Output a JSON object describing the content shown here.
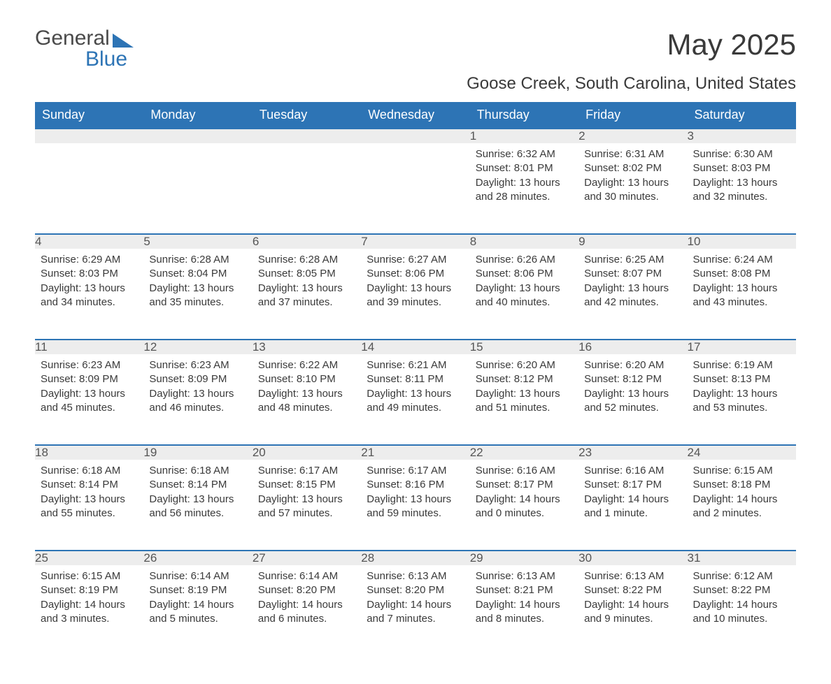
{
  "brand": {
    "word1": "General",
    "word2": "Blue"
  },
  "title": {
    "month": "May 2025",
    "location": "Goose Creek, South Carolina, United States"
  },
  "colors": {
    "header_bg": "#2d74b5",
    "header_text": "#ffffff",
    "daynum_bg": "#ededed",
    "daynum_border": "#2d74b5",
    "body_text": "#3a3a3a"
  },
  "weekdays": [
    "Sunday",
    "Monday",
    "Tuesday",
    "Wednesday",
    "Thursday",
    "Friday",
    "Saturday"
  ],
  "leading_blanks": 4,
  "days": [
    {
      "n": "1",
      "sunrise": "Sunrise: 6:32 AM",
      "sunset": "Sunset: 8:01 PM",
      "daylight": "Daylight: 13 hours and 28 minutes."
    },
    {
      "n": "2",
      "sunrise": "Sunrise: 6:31 AM",
      "sunset": "Sunset: 8:02 PM",
      "daylight": "Daylight: 13 hours and 30 minutes."
    },
    {
      "n": "3",
      "sunrise": "Sunrise: 6:30 AM",
      "sunset": "Sunset: 8:03 PM",
      "daylight": "Daylight: 13 hours and 32 minutes."
    },
    {
      "n": "4",
      "sunrise": "Sunrise: 6:29 AM",
      "sunset": "Sunset: 8:03 PM",
      "daylight": "Daylight: 13 hours and 34 minutes."
    },
    {
      "n": "5",
      "sunrise": "Sunrise: 6:28 AM",
      "sunset": "Sunset: 8:04 PM",
      "daylight": "Daylight: 13 hours and 35 minutes."
    },
    {
      "n": "6",
      "sunrise": "Sunrise: 6:28 AM",
      "sunset": "Sunset: 8:05 PM",
      "daylight": "Daylight: 13 hours and 37 minutes."
    },
    {
      "n": "7",
      "sunrise": "Sunrise: 6:27 AM",
      "sunset": "Sunset: 8:06 PM",
      "daylight": "Daylight: 13 hours and 39 minutes."
    },
    {
      "n": "8",
      "sunrise": "Sunrise: 6:26 AM",
      "sunset": "Sunset: 8:06 PM",
      "daylight": "Daylight: 13 hours and 40 minutes."
    },
    {
      "n": "9",
      "sunrise": "Sunrise: 6:25 AM",
      "sunset": "Sunset: 8:07 PM",
      "daylight": "Daylight: 13 hours and 42 minutes."
    },
    {
      "n": "10",
      "sunrise": "Sunrise: 6:24 AM",
      "sunset": "Sunset: 8:08 PM",
      "daylight": "Daylight: 13 hours and 43 minutes."
    },
    {
      "n": "11",
      "sunrise": "Sunrise: 6:23 AM",
      "sunset": "Sunset: 8:09 PM",
      "daylight": "Daylight: 13 hours and 45 minutes."
    },
    {
      "n": "12",
      "sunrise": "Sunrise: 6:23 AM",
      "sunset": "Sunset: 8:09 PM",
      "daylight": "Daylight: 13 hours and 46 minutes."
    },
    {
      "n": "13",
      "sunrise": "Sunrise: 6:22 AM",
      "sunset": "Sunset: 8:10 PM",
      "daylight": "Daylight: 13 hours and 48 minutes."
    },
    {
      "n": "14",
      "sunrise": "Sunrise: 6:21 AM",
      "sunset": "Sunset: 8:11 PM",
      "daylight": "Daylight: 13 hours and 49 minutes."
    },
    {
      "n": "15",
      "sunrise": "Sunrise: 6:20 AM",
      "sunset": "Sunset: 8:12 PM",
      "daylight": "Daylight: 13 hours and 51 minutes."
    },
    {
      "n": "16",
      "sunrise": "Sunrise: 6:20 AM",
      "sunset": "Sunset: 8:12 PM",
      "daylight": "Daylight: 13 hours and 52 minutes."
    },
    {
      "n": "17",
      "sunrise": "Sunrise: 6:19 AM",
      "sunset": "Sunset: 8:13 PM",
      "daylight": "Daylight: 13 hours and 53 minutes."
    },
    {
      "n": "18",
      "sunrise": "Sunrise: 6:18 AM",
      "sunset": "Sunset: 8:14 PM",
      "daylight": "Daylight: 13 hours and 55 minutes."
    },
    {
      "n": "19",
      "sunrise": "Sunrise: 6:18 AM",
      "sunset": "Sunset: 8:14 PM",
      "daylight": "Daylight: 13 hours and 56 minutes."
    },
    {
      "n": "20",
      "sunrise": "Sunrise: 6:17 AM",
      "sunset": "Sunset: 8:15 PM",
      "daylight": "Daylight: 13 hours and 57 minutes."
    },
    {
      "n": "21",
      "sunrise": "Sunrise: 6:17 AM",
      "sunset": "Sunset: 8:16 PM",
      "daylight": "Daylight: 13 hours and 59 minutes."
    },
    {
      "n": "22",
      "sunrise": "Sunrise: 6:16 AM",
      "sunset": "Sunset: 8:17 PM",
      "daylight": "Daylight: 14 hours and 0 minutes."
    },
    {
      "n": "23",
      "sunrise": "Sunrise: 6:16 AM",
      "sunset": "Sunset: 8:17 PM",
      "daylight": "Daylight: 14 hours and 1 minute."
    },
    {
      "n": "24",
      "sunrise": "Sunrise: 6:15 AM",
      "sunset": "Sunset: 8:18 PM",
      "daylight": "Daylight: 14 hours and 2 minutes."
    },
    {
      "n": "25",
      "sunrise": "Sunrise: 6:15 AM",
      "sunset": "Sunset: 8:19 PM",
      "daylight": "Daylight: 14 hours and 3 minutes."
    },
    {
      "n": "26",
      "sunrise": "Sunrise: 6:14 AM",
      "sunset": "Sunset: 8:19 PM",
      "daylight": "Daylight: 14 hours and 5 minutes."
    },
    {
      "n": "27",
      "sunrise": "Sunrise: 6:14 AM",
      "sunset": "Sunset: 8:20 PM",
      "daylight": "Daylight: 14 hours and 6 minutes."
    },
    {
      "n": "28",
      "sunrise": "Sunrise: 6:13 AM",
      "sunset": "Sunset: 8:20 PM",
      "daylight": "Daylight: 14 hours and 7 minutes."
    },
    {
      "n": "29",
      "sunrise": "Sunrise: 6:13 AM",
      "sunset": "Sunset: 8:21 PM",
      "daylight": "Daylight: 14 hours and 8 minutes."
    },
    {
      "n": "30",
      "sunrise": "Sunrise: 6:13 AM",
      "sunset": "Sunset: 8:22 PM",
      "daylight": "Daylight: 14 hours and 9 minutes."
    },
    {
      "n": "31",
      "sunrise": "Sunrise: 6:12 AM",
      "sunset": "Sunset: 8:22 PM",
      "daylight": "Daylight: 14 hours and 10 minutes."
    }
  ]
}
